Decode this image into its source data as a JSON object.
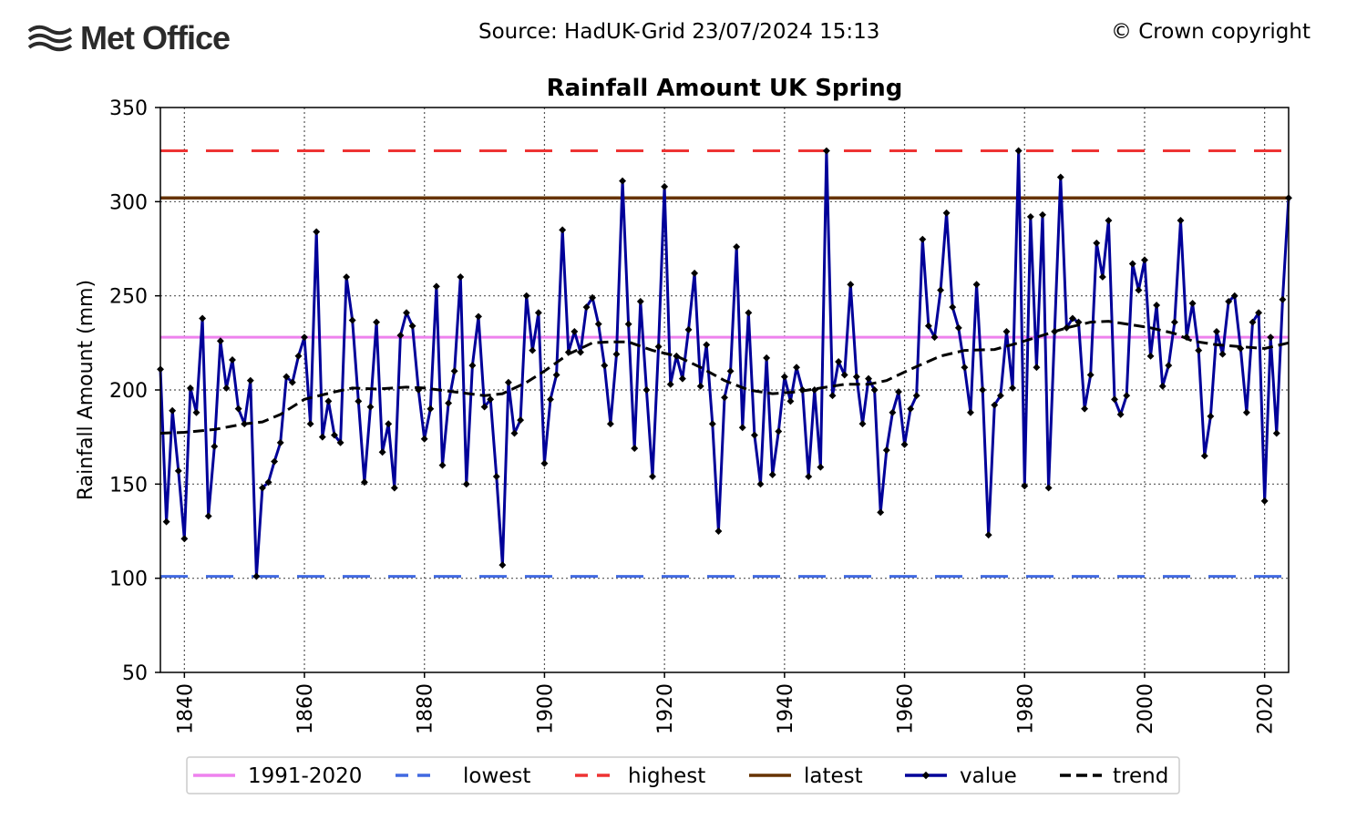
{
  "header": {
    "logo_text": "Met Office",
    "source": "Source: HadUK-Grid 23/07/2024 15:13",
    "copyright": "© Crown copyright"
  },
  "chart_data": {
    "type": "line",
    "title": "Rainfall Amount UK Spring",
    "xlabel": "",
    "ylabel": "Rainfall Amount (mm)",
    "xlim": [
      1836,
      2024
    ],
    "ylim": [
      50,
      350
    ],
    "xticks": [
      1840,
      1860,
      1880,
      1900,
      1920,
      1940,
      1960,
      1980,
      2000,
      2020
    ],
    "yticks": [
      50,
      100,
      150,
      200,
      250,
      300,
      350
    ],
    "grid": true,
    "legend_position": "bottom",
    "legend": [
      "1991-2020",
      "lowest",
      "highest",
      "latest",
      "value",
      "trend"
    ],
    "colors": {
      "baseline": "#ee82ee",
      "lowest": "#4169e1",
      "highest": "#ee3333",
      "latest": "#663300",
      "value": "#000099",
      "trend": "#000000"
    },
    "reference_lines": {
      "1991-2020": 228,
      "lowest": 101,
      "highest": 327,
      "latest": 302
    },
    "series": [
      {
        "name": "value",
        "x_start": 1836,
        "values": [
          211,
          130,
          189,
          157,
          121,
          201,
          188,
          238,
          133,
          170,
          226,
          201,
          216,
          190,
          182,
          205,
          101,
          148,
          151,
          162,
          172,
          207,
          204,
          218,
          228,
          182,
          284,
          175,
          194,
          176,
          172,
          260,
          237,
          194,
          151,
          191,
          236,
          167,
          182,
          148,
          229,
          241,
          234,
          200,
          174,
          190,
          255,
          160,
          193,
          210,
          260,
          150,
          213,
          239,
          191,
          195,
          154,
          107,
          204,
          177,
          184,
          250,
          221,
          241,
          161,
          195,
          208,
          285,
          220,
          231,
          220,
          244,
          249,
          235,
          213,
          182,
          219,
          311,
          235,
          169,
          247,
          200,
          154,
          223,
          308,
          203,
          218,
          206,
          232,
          262,
          202,
          224,
          182,
          125,
          196,
          210,
          276,
          180,
          241,
          176,
          150,
          217,
          155,
          178,
          207,
          194,
          212,
          200,
          154,
          200,
          159,
          327,
          197,
          215,
          208,
          256,
          207,
          182,
          206,
          200,
          135,
          168,
          188,
          199,
          171,
          190,
          197,
          280,
          234,
          228,
          253,
          294,
          244,
          233,
          212,
          188,
          256,
          200,
          123,
          192,
          197,
          231,
          201,
          327,
          149,
          292,
          212,
          293,
          148,
          231,
          313,
          233,
          238,
          236,
          190,
          208,
          278,
          260,
          290,
          195,
          187,
          197,
          267,
          253,
          269,
          218,
          245,
          202,
          213,
          236,
          290,
          228,
          246,
          221,
          165,
          186,
          231,
          219,
          247,
          250,
          222,
          188,
          236,
          241,
          141,
          228,
          177,
          248,
          302
        ]
      },
      {
        "name": "trend",
        "points": [
          [
            1836,
            177
          ],
          [
            1840,
            177.5
          ],
          [
            1845,
            179
          ],
          [
            1850,
            182
          ],
          [
            1853,
            183
          ],
          [
            1856,
            187
          ],
          [
            1860,
            195
          ],
          [
            1865,
            199
          ],
          [
            1868,
            201
          ],
          [
            1872,
            200.5
          ],
          [
            1877,
            201.5
          ],
          [
            1880,
            201
          ],
          [
            1885,
            199
          ],
          [
            1890,
            197
          ],
          [
            1893,
            198
          ],
          [
            1897,
            204
          ],
          [
            1900,
            210
          ],
          [
            1904,
            219
          ],
          [
            1908,
            225
          ],
          [
            1911,
            225.5
          ],
          [
            1914,
            225.5
          ],
          [
            1918,
            221
          ],
          [
            1922,
            218
          ],
          [
            1926,
            212
          ],
          [
            1930,
            205
          ],
          [
            1934,
            200
          ],
          [
            1938,
            198
          ],
          [
            1942,
            199
          ],
          [
            1946,
            201
          ],
          [
            1950,
            203
          ],
          [
            1954,
            203
          ],
          [
            1957,
            205
          ],
          [
            1961,
            211
          ],
          [
            1966,
            218
          ],
          [
            1970,
            221
          ],
          [
            1975,
            221.5
          ],
          [
            1979,
            225
          ],
          [
            1983,
            229
          ],
          [
            1987,
            233
          ],
          [
            1991,
            236
          ],
          [
            1994,
            236.5
          ],
          [
            1998,
            234.5
          ],
          [
            2001,
            233
          ],
          [
            2005,
            230
          ],
          [
            2008,
            226
          ],
          [
            2012,
            224
          ],
          [
            2016,
            223
          ],
          [
            2020,
            222
          ],
          [
            2024,
            225
          ]
        ]
      }
    ]
  }
}
